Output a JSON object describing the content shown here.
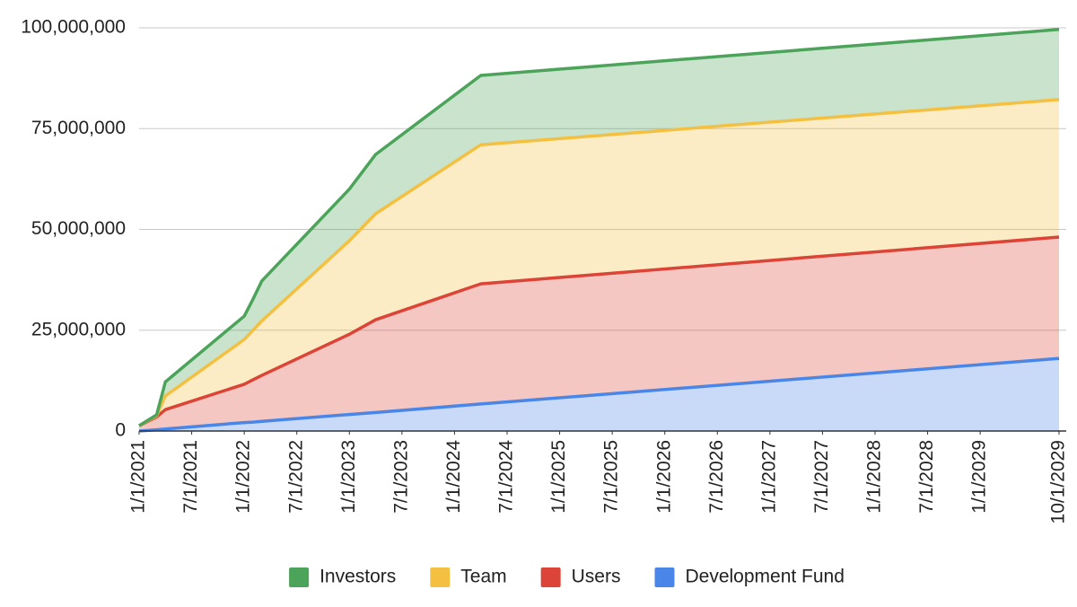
{
  "chart_data": {
    "type": "stacked_area",
    "x": [
      "1/1/2021",
      "3/1/2021",
      "4/1/2021",
      "1/1/2022",
      "2/1/2022",
      "3/1/2022",
      "1/1/2023",
      "4/1/2023",
      "4/1/2024",
      "10/1/2029"
    ],
    "series": [
      {
        "name": "Investors",
        "color": "#4ca35a",
        "values": [
          0,
          200000,
          3500000,
          5800000,
          7700000,
          9900000,
          12800000,
          14700000,
          17200000,
          17400000
        ]
      },
      {
        "name": "Team",
        "color": "#f4c042",
        "values": [
          0,
          300000,
          3400000,
          11100000,
          12300000,
          13500000,
          23200000,
          26300000,
          34500000,
          34100000
        ]
      },
      {
        "name": "Users",
        "color": "#db4437",
        "values": [
          1300000,
          3200000,
          4800000,
          9500000,
          10500000,
          11400000,
          19900000,
          23000000,
          29800000,
          30100000
        ]
      },
      {
        "name": "Development Fund",
        "color": "#4a86e8",
        "values": [
          0,
          300000,
          500000,
          2100000,
          2200000,
          2400000,
          4100000,
          4600000,
          6700000,
          18000000
        ]
      }
    ],
    "xlim": [
      "1/1/2021",
      "10/1/2029"
    ],
    "xticks": [
      "1/1/2021",
      "7/1/2021",
      "1/1/2022",
      "7/1/2022",
      "1/1/2023",
      "7/1/2023",
      "1/1/2024",
      "7/1/2024",
      "1/1/2025",
      "7/1/2025",
      "1/1/2026",
      "7/1/2026",
      "1/1/2027",
      "7/1/2027",
      "1/1/2028",
      "7/1/2028",
      "1/1/2029",
      "10/1/2029"
    ],
    "ylim": [
      0,
      100000000
    ],
    "yticks": [
      0,
      {
        "value": 25000000,
        "label": "25,000,000"
      },
      {
        "value": 50000000,
        "label": "50,000,000"
      },
      {
        "value": 75000000,
        "label": "75,000,000"
      },
      {
        "value": 100000000,
        "label": "100,000,000"
      }
    ],
    "grid": true,
    "legend": "bottom"
  }
}
